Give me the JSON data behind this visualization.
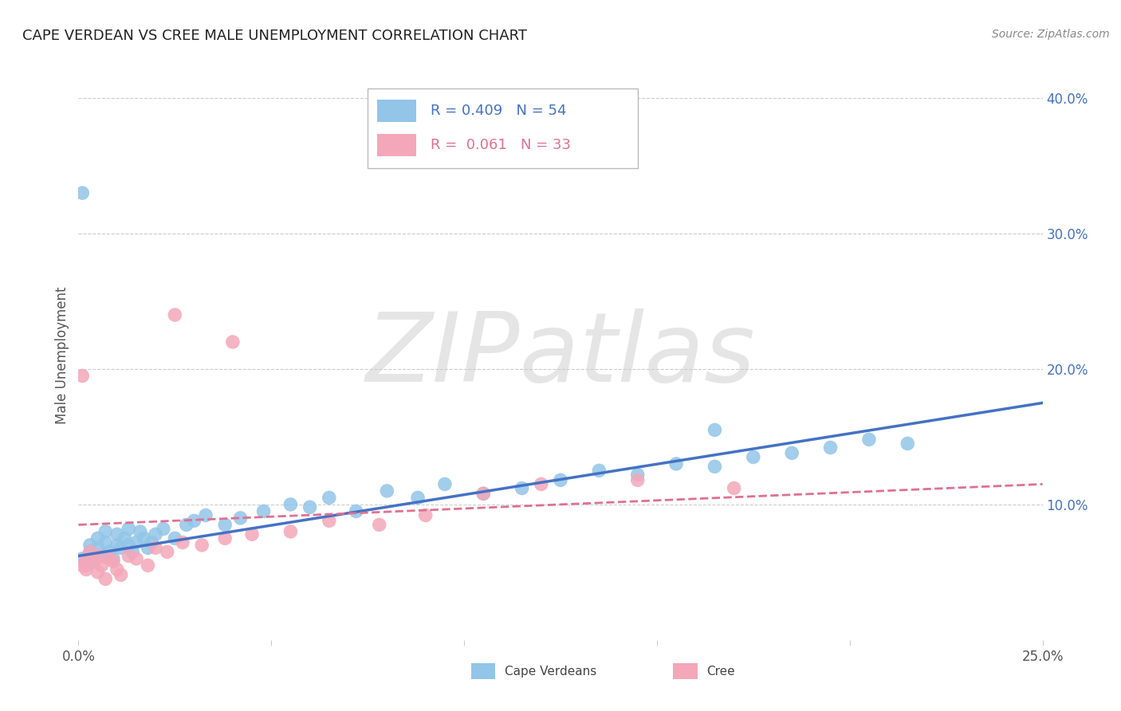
{
  "title": "CAPE VERDEAN VS CREE MALE UNEMPLOYMENT CORRELATION CHART",
  "source": "Source: ZipAtlas.com",
  "ylabel": "Male Unemployment",
  "xlim": [
    0,
    0.25
  ],
  "ylim": [
    0.0,
    0.42
  ],
  "ytick_right_vals": [
    0.1,
    0.2,
    0.3,
    0.4
  ],
  "ytick_right_labels": [
    "10.0%",
    "20.0%",
    "30.0%",
    "40.0%"
  ],
  "grid_vals": [
    0.1,
    0.2,
    0.3,
    0.4
  ],
  "legend_R1": "R = 0.409",
  "legend_N1": "N = 54",
  "legend_R2": "R =  0.061",
  "legend_N2": "N = 33",
  "color_blue": "#92C5E8",
  "color_pink": "#F4A7B9",
  "color_blue_line": "#4472C4",
  "color_pink_line": "#E07090",
  "color_blue_text": "#4472C4",
  "color_pink_text": "#E07090",
  "watermark": "ZIPatlas",
  "cape_verdean_x": [
    0.001,
    0.002,
    0.003,
    0.003,
    0.004,
    0.005,
    0.005,
    0.006,
    0.007,
    0.007,
    0.008,
    0.009,
    0.01,
    0.01,
    0.011,
    0.012,
    0.013,
    0.013,
    0.014,
    0.015,
    0.016,
    0.017,
    0.018,
    0.019,
    0.02,
    0.022,
    0.025,
    0.028,
    0.03,
    0.033,
    0.038,
    0.042,
    0.048,
    0.055,
    0.06,
    0.065,
    0.072,
    0.08,
    0.088,
    0.095,
    0.105,
    0.115,
    0.125,
    0.135,
    0.145,
    0.155,
    0.165,
    0.175,
    0.185,
    0.195,
    0.205,
    0.215,
    0.165,
    0.001
  ],
  "cape_verdean_y": [
    0.06,
    0.055,
    0.065,
    0.07,
    0.058,
    0.068,
    0.075,
    0.062,
    0.072,
    0.08,
    0.065,
    0.06,
    0.07,
    0.078,
    0.068,
    0.075,
    0.082,
    0.07,
    0.065,
    0.072,
    0.08,
    0.075,
    0.068,
    0.072,
    0.078,
    0.082,
    0.075,
    0.085,
    0.088,
    0.092,
    0.085,
    0.09,
    0.095,
    0.1,
    0.098,
    0.105,
    0.095,
    0.11,
    0.105,
    0.115,
    0.108,
    0.112,
    0.118,
    0.125,
    0.122,
    0.13,
    0.128,
    0.135,
    0.138,
    0.142,
    0.148,
    0.145,
    0.155,
    0.33
  ],
  "cree_x": [
    0.001,
    0.002,
    0.002,
    0.003,
    0.004,
    0.005,
    0.005,
    0.006,
    0.007,
    0.008,
    0.009,
    0.01,
    0.011,
    0.013,
    0.015,
    0.018,
    0.02,
    0.023,
    0.027,
    0.032,
    0.038,
    0.045,
    0.055,
    0.065,
    0.078,
    0.09,
    0.105,
    0.12,
    0.145,
    0.17,
    0.001,
    0.025,
    0.04
  ],
  "cree_y": [
    0.055,
    0.06,
    0.052,
    0.065,
    0.058,
    0.05,
    0.062,
    0.055,
    0.045,
    0.06,
    0.058,
    0.052,
    0.048,
    0.062,
    0.06,
    0.055,
    0.068,
    0.065,
    0.072,
    0.07,
    0.075,
    0.078,
    0.08,
    0.088,
    0.085,
    0.092,
    0.108,
    0.115,
    0.118,
    0.112,
    0.195,
    0.24,
    0.22
  ],
  "cv_trend_x": [
    0.0,
    0.25
  ],
  "cv_trend_y": [
    0.062,
    0.175
  ],
  "cr_trend_x": [
    0.0,
    0.25
  ],
  "cr_trend_y": [
    0.085,
    0.115
  ]
}
